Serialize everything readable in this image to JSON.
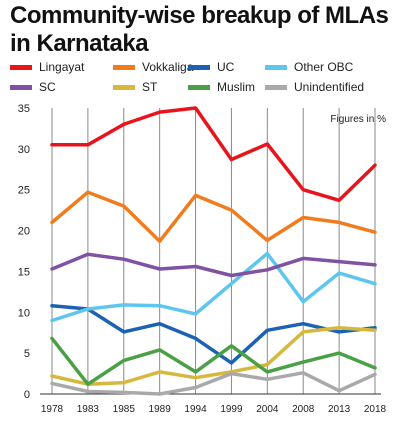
{
  "chart_data": {
    "type": "line",
    "title": "Community-wise breakup of MLAs in Karnataka",
    "annotation": "Figures in %",
    "categories": [
      "1978",
      "1983",
      "1985",
      "1989",
      "1994",
      "1999",
      "2004",
      "2008",
      "2013",
      "2018"
    ],
    "ylim": [
      0,
      35
    ],
    "yticks": [
      "0",
      "5",
      "10",
      "15",
      "20",
      "25",
      "30",
      "35"
    ],
    "grid": "vertical",
    "legend_position": "top",
    "series": [
      {
        "name": "Lingayat",
        "color": "#e8141c",
        "values": [
          30.5,
          30.5,
          33.0,
          34.5,
          35.0,
          28.7,
          30.6,
          25.0,
          23.7,
          28.0
        ]
      },
      {
        "name": "Vokkaliga",
        "color": "#f07c1e",
        "values": [
          21.0,
          24.7,
          23.0,
          18.7,
          24.3,
          22.5,
          18.8,
          21.6,
          21.0,
          19.8
        ]
      },
      {
        "name": "UC",
        "color": "#1c62b4",
        "values": [
          10.8,
          10.4,
          7.6,
          8.6,
          6.8,
          3.8,
          7.8,
          8.6,
          7.6,
          8.1
        ]
      },
      {
        "name": "Other OBC",
        "color": "#5ec6ee",
        "values": [
          9.0,
          10.4,
          10.9,
          10.8,
          9.8,
          13.5,
          17.2,
          11.3,
          14.8,
          13.5
        ]
      },
      {
        "name": "SC",
        "color": "#8052a4",
        "values": [
          15.3,
          17.1,
          16.5,
          15.3,
          15.6,
          14.5,
          15.2,
          16.6,
          16.2,
          15.8
        ]
      },
      {
        "name": "ST",
        "color": "#d7b83e",
        "values": [
          2.2,
          1.2,
          1.4,
          2.7,
          2.0,
          2.7,
          3.6,
          7.6,
          8.1,
          7.8
        ]
      },
      {
        "name": "Muslim",
        "color": "#4aa045",
        "values": [
          6.8,
          1.2,
          4.1,
          5.4,
          2.7,
          5.9,
          2.7,
          3.9,
          5.0,
          3.2
        ]
      },
      {
        "name": "Unindentified",
        "color": "#a9a9a9",
        "values": [
          1.3,
          0.3,
          0.2,
          0.0,
          0.8,
          2.5,
          1.8,
          2.6,
          0.4,
          2.4
        ]
      }
    ]
  }
}
